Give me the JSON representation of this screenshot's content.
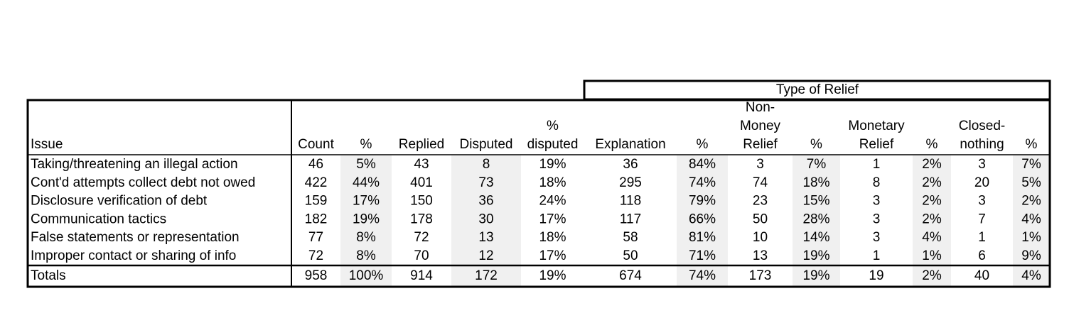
{
  "table": {
    "group_header": "Type of Relief",
    "headers": [
      [
        "Issue"
      ],
      [
        "Count"
      ],
      [
        "%"
      ],
      [
        "Replied"
      ],
      [
        "Disputed"
      ],
      [
        "%",
        "disputed"
      ],
      [
        "Explanation"
      ],
      [
        "%"
      ],
      [
        "Non-",
        "Money",
        "Relief"
      ],
      [
        "%"
      ],
      [
        "Monetary",
        "Relief"
      ],
      [
        "%"
      ],
      [
        "Closed-",
        "nothing"
      ],
      [
        "%"
      ]
    ],
    "rows": [
      [
        "Taking/threatening an illegal action",
        "46",
        "5%",
        "43",
        "8",
        "19%",
        "36",
        "84%",
        "3",
        "7%",
        "1",
        "2%",
        "3",
        "7%"
      ],
      [
        "Cont'd attempts collect debt not owed",
        "422",
        "44%",
        "401",
        "73",
        "18%",
        "295",
        "74%",
        "74",
        "18%",
        "8",
        "2%",
        "20",
        "5%"
      ],
      [
        "Disclosure verification of debt",
        "159",
        "17%",
        "150",
        "36",
        "24%",
        "118",
        "79%",
        "23",
        "15%",
        "3",
        "2%",
        "3",
        "2%"
      ],
      [
        "Communication tactics",
        "182",
        "19%",
        "178",
        "30",
        "17%",
        "117",
        "66%",
        "50",
        "28%",
        "3",
        "2%",
        "7",
        "4%"
      ],
      [
        "False statements or representation",
        "77",
        "8%",
        "72",
        "13",
        "18%",
        "58",
        "81%",
        "10",
        "14%",
        "3",
        "4%",
        "1",
        "1%"
      ],
      [
        "Improper contact or sharing of info",
        "72",
        "8%",
        "70",
        "12",
        "17%",
        "50",
        "71%",
        "13",
        "19%",
        "1",
        "1%",
        "6",
        "9%"
      ]
    ],
    "totals": [
      "Totals",
      "958",
      "100%",
      "914",
      "172",
      "19%",
      "674",
      "74%",
      "173",
      "19%",
      "19",
      "2%",
      "40",
      "4%"
    ]
  }
}
